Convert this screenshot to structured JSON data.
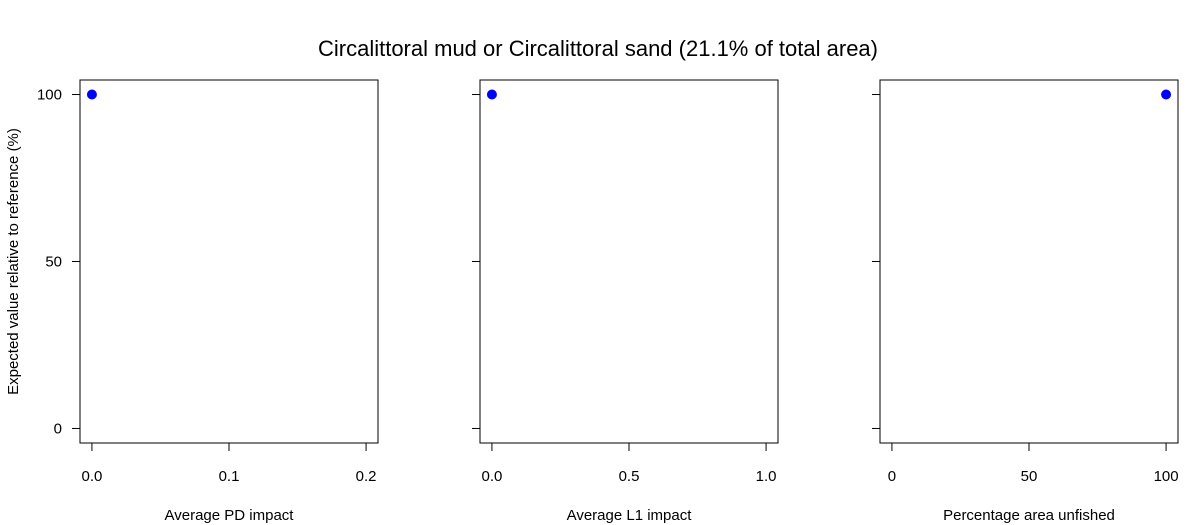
{
  "title": "Circalittoral mud or Circalittoral sand (21.1% of total area)",
  "point_color": "#0000ff",
  "chart_data": [
    {
      "type": "scatter",
      "xlabel": "Average PD impact",
      "ylabel": "Expected value relative to reference (%)",
      "xlim": [
        0,
        0.2
      ],
      "ylim": [
        0,
        100
      ],
      "xticks": [
        "0.0",
        "0.1",
        "0.2"
      ],
      "yticks": [
        "0",
        "50",
        "100"
      ],
      "series": [
        {
          "x": [
            0
          ],
          "y": [
            100
          ]
        }
      ]
    },
    {
      "type": "scatter",
      "xlabel": "Average L1 impact",
      "ylabel": "",
      "xlim": [
        0,
        1
      ],
      "ylim": [
        0,
        100
      ],
      "xticks": [
        "0.0",
        "0.5",
        "1.0"
      ],
      "yticks": [],
      "series": [
        {
          "x": [
            0
          ],
          "y": [
            100
          ]
        }
      ]
    },
    {
      "type": "scatter",
      "xlabel": "Percentage area unfished",
      "ylabel": "",
      "xlim": [
        0,
        100
      ],
      "ylim": [
        0,
        100
      ],
      "xticks": [
        "0",
        "50",
        "100"
      ],
      "yticks": [],
      "series": [
        {
          "x": [
            100
          ],
          "y": [
            100
          ]
        }
      ]
    }
  ]
}
